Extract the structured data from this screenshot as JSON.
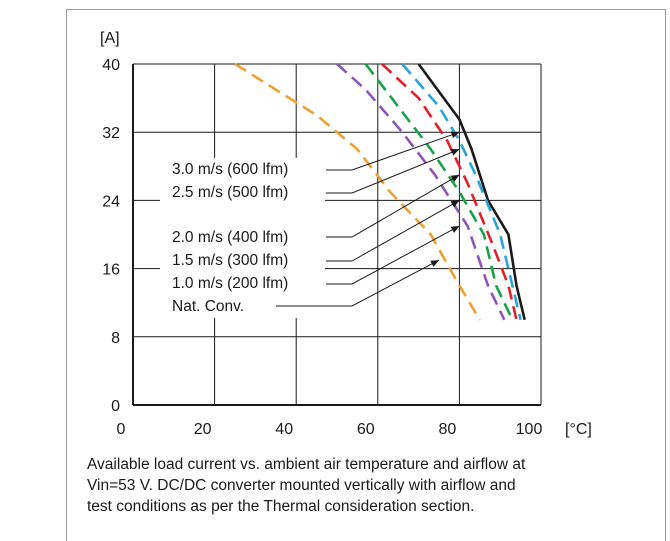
{
  "chart_data": {
    "type": "line",
    "ylabel": "[A]",
    "xlabel": "[°C]",
    "xlim": [
      0,
      100
    ],
    "ylim": [
      0,
      40
    ],
    "x_ticks": [
      0,
      20,
      40,
      60,
      80,
      100
    ],
    "y_ticks": [
      0,
      8,
      16,
      24,
      32,
      40
    ],
    "grid": true,
    "legend_position": "left inside plot with leader lines",
    "series": [
      {
        "name": "3.0 m/s (600 lfm)",
        "color": "#1a1a1a",
        "dash": "solid",
        "points": [
          [
            70,
            40
          ],
          [
            80,
            33.5
          ],
          [
            83,
            30
          ],
          [
            87,
            24
          ],
          [
            92,
            20
          ],
          [
            94,
            14
          ],
          [
            96,
            10
          ]
        ]
      },
      {
        "name": "2.5 m/s (500 lfm)",
        "color": "#2aa5dc",
        "dash": "dashed",
        "points": [
          [
            66,
            40
          ],
          [
            75,
            35
          ],
          [
            80,
            31
          ],
          [
            84,
            27
          ],
          [
            90,
            20
          ],
          [
            93,
            14
          ],
          [
            95,
            10
          ]
        ]
      },
      {
        "name": "2.0 m/s (400 lfm)",
        "color": "#e2202a",
        "dash": "dashed",
        "points": [
          [
            61,
            40
          ],
          [
            70,
            36
          ],
          [
            77,
            31
          ],
          [
            82,
            26
          ],
          [
            88,
            19
          ],
          [
            92,
            14
          ],
          [
            94,
            10
          ]
        ]
      },
      {
        "name": "1.5 m/s (300 lfm)",
        "color": "#17a34a",
        "dash": "dashed",
        "points": [
          [
            57,
            40
          ],
          [
            65,
            35
          ],
          [
            73,
            30
          ],
          [
            80,
            25
          ],
          [
            86,
            20
          ],
          [
            89,
            14
          ],
          [
            93,
            10
          ]
        ]
      },
      {
        "name": "1.0 m/s (200 lfm)",
        "color": "#8c55b8",
        "dash": "dashed",
        "points": [
          [
            50,
            40
          ],
          [
            57,
            37
          ],
          [
            66,
            32
          ],
          [
            74,
            27
          ],
          [
            82,
            21
          ],
          [
            87,
            14
          ],
          [
            91,
            10
          ]
        ]
      },
      {
        "name": "Nat. Conv.",
        "color": "#f0a030",
        "dash": "dashed",
        "points": [
          [
            25,
            40
          ],
          [
            35,
            37
          ],
          [
            45,
            34
          ],
          [
            55,
            30
          ],
          [
            63,
            25
          ],
          [
            73,
            20
          ],
          [
            80,
            14
          ],
          [
            85,
            10
          ]
        ]
      }
    ]
  },
  "caption": {
    "line1": "Available load current vs. ambient air temperature and airflow at",
    "line2": "Vin=53 V. DC/DC converter mounted vertically with airflow and",
    "line3": "test conditions as per the Thermal consideration section."
  }
}
